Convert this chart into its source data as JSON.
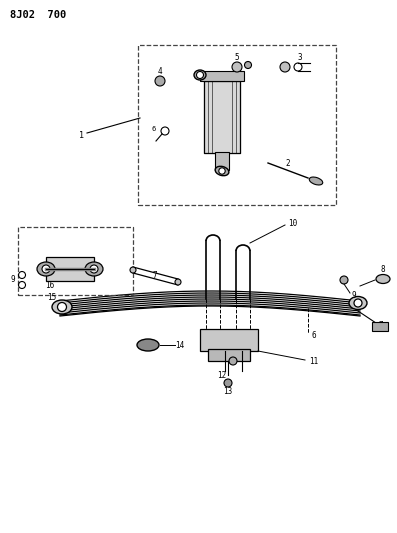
{
  "title": "8J02  700",
  "bg_color": "#ffffff",
  "line_color": "#000000",
  "fig_width": 3.97,
  "fig_height": 5.33,
  "dpi": 100
}
